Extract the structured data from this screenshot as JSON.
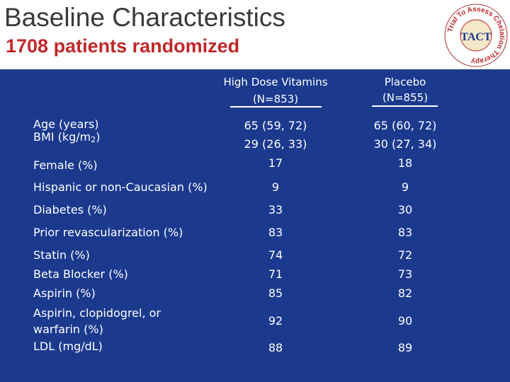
{
  "header": {
    "title": "Baseline Characteristics",
    "subtitle": "1708 patients randomized",
    "logo": {
      "ring_text": "Trial To Assess Chelation Therapy",
      "name": "TACT"
    }
  },
  "table": {
    "columns": [
      {
        "line1": "High Dose Vitamins",
        "line2": "(N=853)"
      },
      {
        "line1": "Placebo",
        "line2": "(N=855)"
      }
    ],
    "rows": [
      {
        "label": "Age (years)",
        "hdv": "65 (59, 72)",
        "placebo": "65 (60, 72)"
      },
      {
        "label": "BMI (kg/m",
        "label_sup": "2",
        "label_end": ")",
        "hdv": "29 (26, 33)",
        "placebo": "30 (27, 34)"
      },
      {
        "label": "Female (%)",
        "hdv": "17",
        "placebo": "18"
      },
      {
        "label": "Hispanic or non-Caucasian (%)",
        "hdv": "9",
        "placebo": "9"
      },
      {
        "label": "Diabetes (%)",
        "hdv": "33",
        "placebo": "30"
      },
      {
        "label": "Prior revascularization (%)",
        "hdv": "83",
        "placebo": "83"
      },
      {
        "label": "Statin (%)",
        "hdv": "74",
        "placebo": "72"
      },
      {
        "label": "Beta Blocker (%)",
        "hdv": "71",
        "placebo": "73"
      },
      {
        "label": "Aspirin (%)",
        "hdv": "85",
        "placebo": "82"
      },
      {
        "label_line1": "Aspirin, clopidogrel, or",
        "label_line2": "warfarin (%)",
        "hdv": "92",
        "placebo": "90"
      },
      {
        "label": "LDL (mg/dL)",
        "hdv": "88",
        "placebo": "89"
      }
    ]
  }
}
